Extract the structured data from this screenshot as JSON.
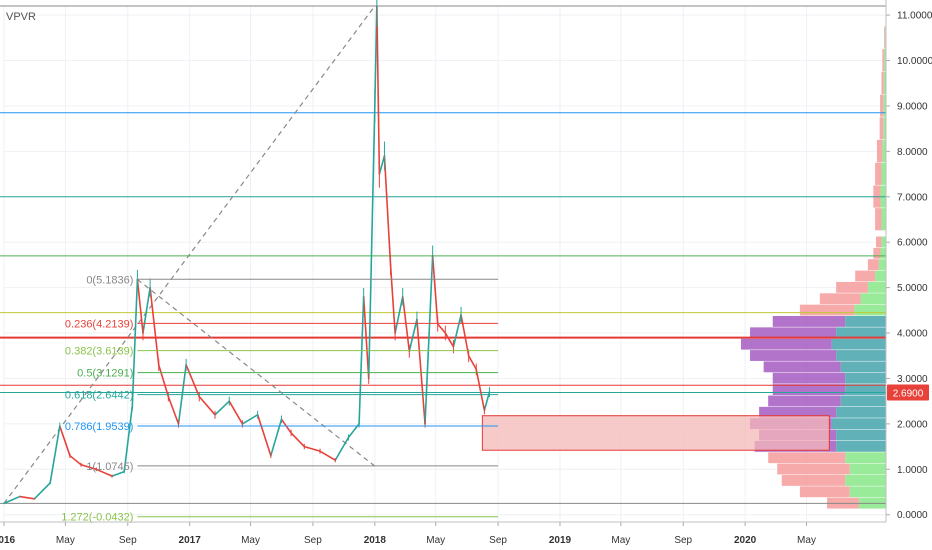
{
  "indicator": {
    "label": "VPVR"
  },
  "price_badge": {
    "value": "2.6900",
    "price": 2.69,
    "color": "#e8413a"
  },
  "chart_data": {
    "type": "candlestick",
    "y_axis": {
      "ylim": [
        -0.16,
        11.2
      ],
      "ticks": [
        {
          "v": 0,
          "label": "0.0000"
        },
        {
          "v": 1,
          "label": "1.0000"
        },
        {
          "v": 2,
          "label": "2.0000"
        },
        {
          "v": 3,
          "label": "3.0000"
        },
        {
          "v": 4,
          "label": "4.0000"
        },
        {
          "v": 5,
          "label": "5.0000"
        },
        {
          "v": 6,
          "label": "6.0000"
        },
        {
          "v": 7,
          "label": "7.0000"
        },
        {
          "v": 8,
          "label": "8.0000"
        },
        {
          "v": 9,
          "label": "9.0000"
        },
        {
          "v": 10,
          "label": "10.0000"
        },
        {
          "v": 11,
          "label": "11.0000"
        }
      ]
    },
    "x_axis": {
      "range": [
        "2016-01-01",
        "2020-09-15"
      ],
      "ticks": [
        {
          "date": "2016-01-01",
          "label": "2016",
          "major": true
        },
        {
          "date": "2016-05-01",
          "label": "May",
          "major": false
        },
        {
          "date": "2016-09-01",
          "label": "Sep",
          "major": false
        },
        {
          "date": "2017-01-01",
          "label": "2017",
          "major": true
        },
        {
          "date": "2017-05-01",
          "label": "May",
          "major": false
        },
        {
          "date": "2017-09-01",
          "label": "Sep",
          "major": false
        },
        {
          "date": "2018-01-01",
          "label": "2018",
          "major": true
        },
        {
          "date": "2018-05-01",
          "label": "May",
          "major": false
        },
        {
          "date": "2018-09-01",
          "label": "Sep",
          "major": false
        },
        {
          "date": "2019-01-01",
          "label": "2019",
          "major": true
        },
        {
          "date": "2019-05-01",
          "label": "May",
          "major": false
        },
        {
          "date": "2019-09-01",
          "label": "Sep",
          "major": false
        },
        {
          "date": "2020-01-01",
          "label": "2020",
          "major": true
        },
        {
          "date": "2020-05-01",
          "label": "May",
          "major": false
        }
      ]
    },
    "price_path": [
      {
        "date": "2016-01-01",
        "price": 0.25
      },
      {
        "date": "2016-02-01",
        "price": 0.4
      },
      {
        "date": "2016-03-01",
        "price": 0.35
      },
      {
        "date": "2016-04-01",
        "price": 0.7
      },
      {
        "date": "2016-04-20",
        "price": 1.95
      },
      {
        "date": "2016-05-10",
        "price": 1.3
      },
      {
        "date": "2016-06-01",
        "price": 1.1
      },
      {
        "date": "2016-07-01",
        "price": 1.0
      },
      {
        "date": "2016-08-01",
        "price": 0.85
      },
      {
        "date": "2016-08-25",
        "price": 0.95
      },
      {
        "date": "2016-09-10",
        "price": 2.4
      },
      {
        "date": "2016-09-20",
        "price": 5.18
      },
      {
        "date": "2016-10-01",
        "price": 4.0
      },
      {
        "date": "2016-10-15",
        "price": 5.0
      },
      {
        "date": "2016-11-01",
        "price": 3.3
      },
      {
        "date": "2016-11-20",
        "price": 2.6
      },
      {
        "date": "2016-12-10",
        "price": 2.0
      },
      {
        "date": "2016-12-25",
        "price": 3.3
      },
      {
        "date": "2017-01-20",
        "price": 2.6
      },
      {
        "date": "2017-02-20",
        "price": 2.2
      },
      {
        "date": "2017-03-20",
        "price": 2.5
      },
      {
        "date": "2017-04-15",
        "price": 2.0
      },
      {
        "date": "2017-05-15",
        "price": 2.2
      },
      {
        "date": "2017-06-10",
        "price": 1.3
      },
      {
        "date": "2017-07-01",
        "price": 2.1
      },
      {
        "date": "2017-07-20",
        "price": 1.8
      },
      {
        "date": "2017-08-15",
        "price": 1.5
      },
      {
        "date": "2017-09-15",
        "price": 1.4
      },
      {
        "date": "2017-10-15",
        "price": 1.2
      },
      {
        "date": "2017-11-10",
        "price": 1.7
      },
      {
        "date": "2017-12-01",
        "price": 2.0
      },
      {
        "date": "2017-12-10",
        "price": 4.8
      },
      {
        "date": "2017-12-20",
        "price": 3.0
      },
      {
        "date": "2018-01-01",
        "price": 9.0
      },
      {
        "date": "2018-01-05",
        "price": 11.2
      },
      {
        "date": "2018-01-10",
        "price": 7.5
      },
      {
        "date": "2018-01-20",
        "price": 7.9
      },
      {
        "date": "2018-02-01",
        "price": 5.5
      },
      {
        "date": "2018-02-10",
        "price": 4.0
      },
      {
        "date": "2018-02-25",
        "price": 4.8
      },
      {
        "date": "2018-03-10",
        "price": 3.6
      },
      {
        "date": "2018-03-25",
        "price": 4.3
      },
      {
        "date": "2018-04-10",
        "price": 2.0
      },
      {
        "date": "2018-04-25",
        "price": 5.7
      },
      {
        "date": "2018-05-05",
        "price": 4.2
      },
      {
        "date": "2018-05-20",
        "price": 4.0
      },
      {
        "date": "2018-06-05",
        "price": 3.7
      },
      {
        "date": "2018-06-20",
        "price": 4.4
      },
      {
        "date": "2018-07-05",
        "price": 3.5
      },
      {
        "date": "2018-07-20",
        "price": 3.2
      },
      {
        "date": "2018-08-05",
        "price": 2.3
      },
      {
        "date": "2018-08-15",
        "price": 2.7
      }
    ],
    "volume_profile": {
      "bins": [
        {
          "price": 0.25,
          "up": 0.3,
          "down": 0.35
        },
        {
          "price": 0.5,
          "up": 0.4,
          "down": 0.55
        },
        {
          "price": 0.75,
          "up": 0.45,
          "down": 0.7
        },
        {
          "price": 1.0,
          "up": 0.4,
          "down": 0.8
        },
        {
          "price": 1.25,
          "up": 0.45,
          "down": 0.85
        },
        {
          "price": 1.5,
          "up": 0.55,
          "down": 0.9
        },
        {
          "price": 1.75,
          "up": 0.55,
          "down": 0.85
        },
        {
          "price": 2.0,
          "up": 0.6,
          "down": 0.9
        },
        {
          "price": 2.25,
          "up": 0.55,
          "down": 0.85
        },
        {
          "price": 2.5,
          "up": 0.5,
          "down": 0.8
        },
        {
          "price": 2.75,
          "up": 0.45,
          "down": 0.8
        },
        {
          "price": 3.0,
          "up": 0.45,
          "down": 0.8
        },
        {
          "price": 3.25,
          "up": 0.5,
          "down": 0.85
        },
        {
          "price": 3.5,
          "up": 0.55,
          "down": 0.95
        },
        {
          "price": 3.75,
          "up": 0.6,
          "down": 1.0
        },
        {
          "price": 4.0,
          "up": 0.55,
          "down": 0.95
        },
        {
          "price": 4.25,
          "up": 0.45,
          "down": 0.8
        },
        {
          "price": 4.5,
          "up": 0.35,
          "down": 0.6
        },
        {
          "price": 4.75,
          "up": 0.28,
          "down": 0.45
        },
        {
          "price": 5.0,
          "up": 0.2,
          "down": 0.35
        },
        {
          "price": 5.25,
          "up": 0.12,
          "down": 0.22
        },
        {
          "price": 5.5,
          "up": 0.08,
          "down": 0.12
        },
        {
          "price": 5.75,
          "up": 0.06,
          "down": 0.08
        },
        {
          "price": 6.0,
          "up": 0.05,
          "down": 0.06
        },
        {
          "price": 6.5,
          "up": 0.05,
          "down": 0.07
        },
        {
          "price": 7.0,
          "up": 0.06,
          "down": 0.08
        },
        {
          "price": 7.5,
          "up": 0.05,
          "down": 0.07
        },
        {
          "price": 8.0,
          "up": 0.04,
          "down": 0.06
        },
        {
          "price": 8.5,
          "up": 0.03,
          "down": 0.04
        },
        {
          "price": 9.0,
          "up": 0.03,
          "down": 0.035
        },
        {
          "price": 9.5,
          "up": 0.025,
          "down": 0.025
        },
        {
          "price": 10.0,
          "up": 0.02,
          "down": 0.02
        },
        {
          "price": 10.5,
          "up": 0.01,
          "down": 0.01
        }
      ]
    },
    "fibonacci": {
      "color_line": "#888888",
      "levels": [
        {
          "ratio": "0",
          "price": 5.1836,
          "label": "0(5.1836)",
          "color": "#888888"
        },
        {
          "ratio": "0.236",
          "price": 4.2139,
          "label": "0.236(4.2139)",
          "color": "#e8413a"
        },
        {
          "ratio": "0.382",
          "price": 3.6139,
          "label": "0.382(3.6139)",
          "color": "#8bc34a"
        },
        {
          "ratio": "0.5",
          "price": 3.1291,
          "label": "0.5(3.1291)",
          "color": "#4caf50"
        },
        {
          "ratio": "0.618",
          "price": 2.6442,
          "label": "0.618(2.6442)",
          "color": "#26a69a"
        },
        {
          "ratio": "0.786",
          "price": 1.9539,
          "label": "0.786(1.9539)",
          "color": "#2196f3"
        },
        {
          "ratio": "1",
          "price": 1.0745,
          "label": "1(1.0745)",
          "color": "#888888"
        },
        {
          "ratio": "1.272",
          "price": -0.0432,
          "label": "1.272(-0.0432)",
          "color": "#8bc34a"
        }
      ]
    },
    "horizontal_lines": [
      {
        "price": 11.2,
        "color": "#888888"
      },
      {
        "price": 8.85,
        "color": "#2196f3"
      },
      {
        "price": 7.0,
        "color": "#26a69a"
      },
      {
        "price": 5.7,
        "color": "#4caf50"
      },
      {
        "price": 4.45,
        "color": "#c0ca33"
      },
      {
        "price": 3.9,
        "color": "#e53935"
      },
      {
        "price": 2.85,
        "color": "#e53935"
      },
      {
        "price": 2.69,
        "color": "#26a69a"
      },
      {
        "price": 0.25,
        "color": "#888888"
      }
    ],
    "trend_lines": [
      {
        "from": {
          "date": "2016-01-01",
          "price": 0.25
        },
        "to": {
          "date": "2018-01-01",
          "price": 11.2
        },
        "color": "#888888"
      },
      {
        "from": {
          "date": "2016-09-20",
          "price": 5.18
        },
        "to": {
          "date": "2018-01-01",
          "price": 1.07
        },
        "color": "#888888"
      }
    ],
    "zone": {
      "from": "2018-08-01",
      "to": "2020-06-15",
      "price_low": 1.42,
      "price_high": 2.18,
      "fill": "#f4b8b8",
      "stroke": "#e53935"
    }
  }
}
